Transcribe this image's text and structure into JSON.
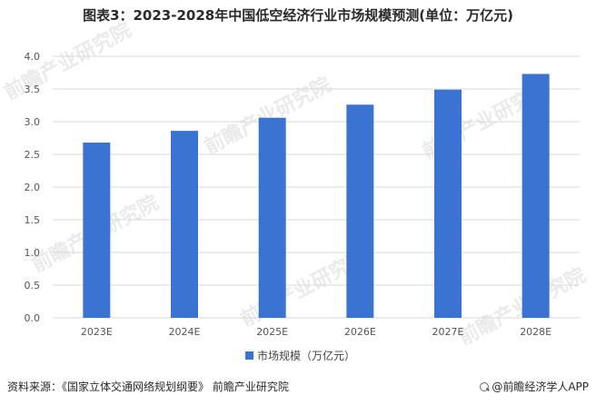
{
  "chart_data": {
    "type": "bar",
    "title": "图表3：2023-2028年中国低空经济行业市场规模预测(单位：万亿元)",
    "categories": [
      "2023E",
      "2024E",
      "2025E",
      "2026E",
      "2027E",
      "2028E"
    ],
    "series": [
      {
        "name": "市场规模（万亿元）",
        "values": [
          2.68,
          2.86,
          3.06,
          3.26,
          3.49,
          3.73
        ]
      }
    ],
    "ylim": [
      0,
      4.0
    ],
    "yticks": [
      "0.0",
      "0.5",
      "1.0",
      "1.5",
      "2.0",
      "2.5",
      "3.0",
      "3.5",
      "4.0"
    ],
    "grid": true,
    "legend_position": "bottom",
    "bar_color": "#3b73d3"
  },
  "watermark": {
    "text": "前瞻产业研究院"
  },
  "footer": {
    "source": "资料来源：《国家立体交通网络规划纲要》 前瞻产业研究院",
    "brand": "@前瞻经济学人APP"
  }
}
